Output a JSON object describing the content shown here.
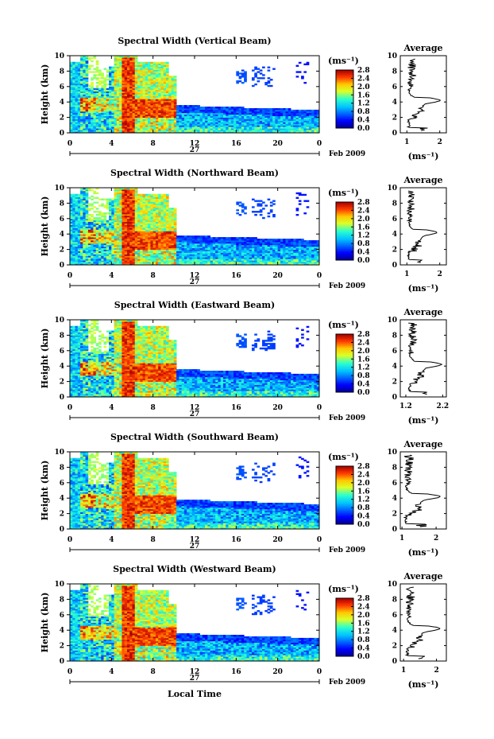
{
  "chart_data": [
    {
      "type": "heatmap",
      "title": "Spectral Width (Vertical Beam)",
      "ylabel": "Height (km)",
      "date_label": "27",
      "month_label": "Feb 2009",
      "x_ticks": [
        "0",
        "4",
        "8",
        "12",
        "16",
        "20",
        "0"
      ],
      "y_ticks": [
        "0",
        "2",
        "4",
        "6",
        "8",
        "10"
      ],
      "xlim": [
        0,
        24
      ],
      "ylim": [
        0,
        10
      ],
      "colorbar": {
        "unit": "(ms⁻¹)",
        "ticks": [
          "0.0",
          "0.4",
          "0.8",
          "1.2",
          "1.6",
          "2.0",
          "2.4",
          "2.8"
        ],
        "range": [
          0,
          2.8
        ]
      },
      "profile": {
        "title": "Average",
        "xlabel": "(ms⁻¹)",
        "x_ticks": [
          "1",
          "2"
        ],
        "x_values": [
          1,
          2
        ],
        "xlim": [
          0.8,
          2.2
        ],
        "y_ticks": [
          "0",
          "2",
          "4",
          "6",
          "8",
          "10"
        ],
        "peak_value": 2.0,
        "base_value": 1.0
      }
    },
    {
      "type": "heatmap",
      "title": "Spectral Width (Northward Beam)",
      "ylabel": "Height (km)",
      "date_label": "27",
      "month_label": "Feb 2009",
      "x_ticks": [
        "0",
        "4",
        "8",
        "12",
        "16",
        "20",
        "0"
      ],
      "y_ticks": [
        "0",
        "2",
        "4",
        "6",
        "8",
        "10"
      ],
      "xlim": [
        0,
        24
      ],
      "ylim": [
        0,
        10
      ],
      "colorbar": {
        "unit": "(ms⁻¹)",
        "ticks": [
          "0.0",
          "0.4",
          "0.8",
          "1.2",
          "1.6",
          "2.0",
          "2.4",
          "2.8"
        ],
        "range": [
          0,
          2.8
        ]
      },
      "profile": {
        "title": "Average",
        "xlabel": "(ms⁻¹)",
        "x_ticks": [
          "1",
          "2"
        ],
        "x_values": [
          1,
          2
        ],
        "xlim": [
          0.8,
          2.2
        ],
        "y_ticks": [
          "0",
          "2",
          "4",
          "6",
          "8",
          "10"
        ],
        "peak_value": 1.9,
        "base_value": 1.0
      }
    },
    {
      "type": "heatmap",
      "title": "Spectral Width (Eastward Beam)",
      "ylabel": "Height (km)",
      "date_label": "27",
      "month_label": "Feb 2009",
      "x_ticks": [
        "0",
        "4",
        "8",
        "12",
        "16",
        "20",
        "0"
      ],
      "y_ticks": [
        "0",
        "2",
        "4",
        "6",
        "8",
        "10"
      ],
      "xlim": [
        0,
        24
      ],
      "ylim": [
        0,
        10
      ],
      "colorbar": {
        "unit": "(ms⁻¹)",
        "ticks": [
          "0.0",
          "0.4",
          "0.8",
          "1.2",
          "1.6",
          "2.0",
          "2.4",
          "2.8"
        ],
        "range": [
          0,
          2.8
        ]
      },
      "profile": {
        "title": "Average",
        "xlabel": "(ms⁻¹)",
        "x_ticks": [
          "1.2",
          "2.2"
        ],
        "x_values": [
          1.2,
          2.2
        ],
        "xlim": [
          1.05,
          2.3
        ],
        "y_ticks": [
          "0",
          "2",
          "4",
          "6",
          "8",
          "10"
        ],
        "peak_value": 2.15,
        "base_value": 1.25
      }
    },
    {
      "type": "heatmap",
      "title": "Spectral Width (Southward Beam)",
      "ylabel": "Height (km)",
      "date_label": "27",
      "month_label": "Feb 2009",
      "x_ticks": [
        "0",
        "4",
        "8",
        "12",
        "16",
        "20",
        "0"
      ],
      "y_ticks": [
        "0",
        "2",
        "4",
        "6",
        "8",
        "10"
      ],
      "xlim": [
        0,
        24
      ],
      "ylim": [
        0,
        10
      ],
      "colorbar": {
        "unit": "(ms⁻¹)",
        "ticks": [
          "0.0",
          "0.4",
          "0.8",
          "1.2",
          "1.6",
          "2.0",
          "2.4",
          "2.8"
        ],
        "range": [
          0,
          2.8
        ]
      },
      "profile": {
        "title": "Average",
        "xlabel": "(ms⁻¹)",
        "x_ticks": [
          "1",
          "2"
        ],
        "x_values": [
          1,
          2
        ],
        "xlim": [
          0.95,
          2.3
        ],
        "y_ticks": [
          "0",
          "2",
          "4",
          "6",
          "8",
          "10"
        ],
        "peak_value": 2.1,
        "base_value": 1.05
      }
    },
    {
      "type": "heatmap",
      "title": "Spectral Width (Westward Beam)",
      "ylabel": "Height (km)",
      "xlabel": "Local Time",
      "date_label": "27",
      "month_label": "Feb 2009",
      "x_ticks": [
        "0",
        "4",
        "8",
        "12",
        "16",
        "20",
        "0"
      ],
      "y_ticks": [
        "0",
        "2",
        "4",
        "6",
        "8",
        "10"
      ],
      "xlim": [
        0,
        24
      ],
      "ylim": [
        0,
        10
      ],
      "colorbar": {
        "unit": "(ms⁻¹)",
        "ticks": [
          "0.0",
          "0.4",
          "0.8",
          "1.2",
          "1.6",
          "2.0",
          "2.4",
          "2.8"
        ],
        "range": [
          0,
          2.8
        ]
      },
      "profile": {
        "title": "Average",
        "xlabel": "(ms⁻¹)",
        "x_ticks": [
          "1",
          "2"
        ],
        "x_values": [
          1,
          2
        ],
        "xlim": [
          0.9,
          2.3
        ],
        "y_ticks": [
          "0",
          "2",
          "4",
          "6",
          "8",
          "10"
        ],
        "peak_value": 2.1,
        "base_value": 1.05
      }
    }
  ]
}
